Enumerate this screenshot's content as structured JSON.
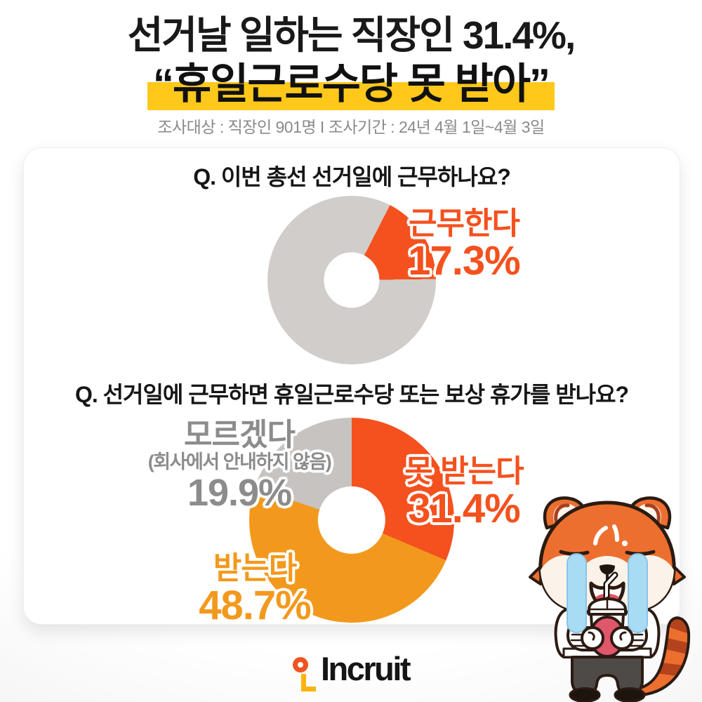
{
  "header": {
    "title_line1": "선거날 일하는 직장인 31.4%,",
    "title_line2": "“휴일근로수당 못 받아”",
    "subtitle": "조사대상 : 직장인 901명 I 조사기간 : 24년 4월 1일~4월 3일"
  },
  "q1": {
    "question": "Q. 이번 총선 선거일에 근무하나요?",
    "work_label": "근무한다",
    "work_value": "17.3%"
  },
  "q2": {
    "question": "Q. 선거일에 근무하면 휴일근로수당 또는 보상 휴가를 받나요?",
    "no_label": "못 받는다",
    "no_value": "31.4%",
    "yes_label": "받는다",
    "yes_value": "48.7%",
    "dk_label": "모르겠다",
    "dk_sub": "(회사에서 안내하지 않음)",
    "dk_value": "19.9%"
  },
  "footer": {
    "logo_text": "Incruit"
  },
  "colors": {
    "orange_red": "#F4511E",
    "orange": "#F2991D",
    "slice_gray_1": "#D0CDCA",
    "slice_gray_2": "#C6C3C0",
    "label_gray": "#8C8C8C",
    "highlight_yellow": "#FFC81A"
  },
  "chart_data": [
    {
      "type": "pie",
      "donut": true,
      "title": "Q. 이번 총선 선거일에 근무하나요?",
      "start_angle_deg": 27,
      "hole_ratio": 0.33,
      "slices": [
        {
          "label": "근무한다",
          "value": 17.3,
          "color": "#F4511E"
        },
        {
          "label": "",
          "value": 82.7,
          "color": "#D0CDCA"
        }
      ]
    },
    {
      "type": "pie",
      "donut": true,
      "title": "Q. 선거일에 근무하면 휴일근로수당 또는 보상 휴가를 받나요?",
      "start_angle_deg": 0,
      "hole_ratio": 0.33,
      "slices": [
        {
          "label": "못 받는다",
          "value": 31.4,
          "color": "#F4511E"
        },
        {
          "label": "받는다",
          "value": 48.7,
          "color": "#F2991D"
        },
        {
          "label": "모르겠다 (회사에서 안내하지 않음)",
          "value": 19.9,
          "color": "#C6C3C0"
        }
      ]
    }
  ]
}
